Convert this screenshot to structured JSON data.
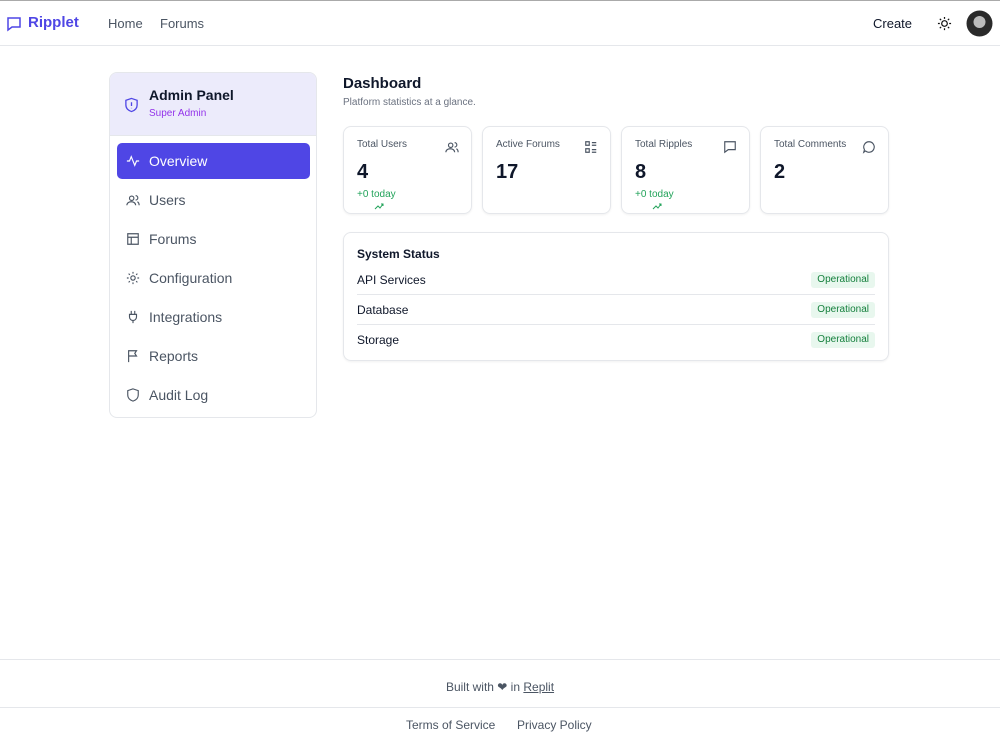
{
  "header": {
    "brand": "Ripplet",
    "nav": [
      "Home",
      "Forums"
    ],
    "create": "Create"
  },
  "sidebar": {
    "title": "Admin Panel",
    "role": "Super Admin",
    "items": [
      "Overview",
      "Users",
      "Forums",
      "Configuration",
      "Integrations",
      "Reports",
      "Audit Log"
    ]
  },
  "main": {
    "title": "Dashboard",
    "subtitle": "Platform statistics at a glance.",
    "stats": [
      {
        "label": "Total Users",
        "value": 4,
        "change": "+0 today"
      },
      {
        "label": "Active Forums",
        "value": 17
      },
      {
        "label": "Total Ripples",
        "value": 8,
        "change": "+0 today"
      },
      {
        "label": "Total Comments",
        "value": 2
      }
    ],
    "status": {
      "title": "System Status",
      "rows": [
        {
          "service": "API Services",
          "state": "Operational"
        },
        {
          "service": "Database",
          "state": "Operational"
        },
        {
          "service": "Storage",
          "state": "Operational"
        }
      ]
    }
  },
  "footer": {
    "built": "Built with ❤ in",
    "link": "Replit",
    "links": [
      "Terms of Service",
      "Privacy Policy"
    ]
  }
}
